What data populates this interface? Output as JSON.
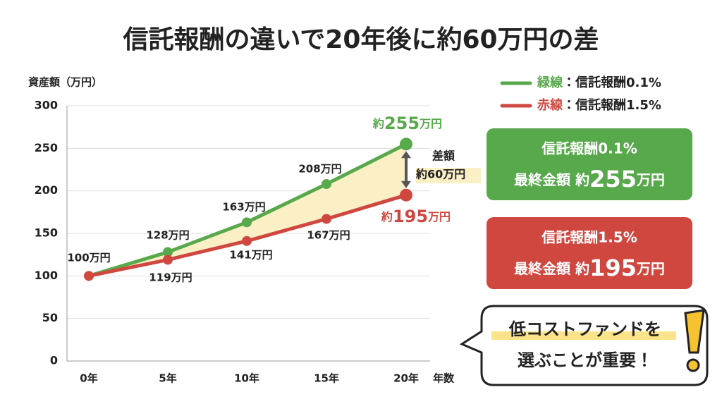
{
  "chart_data": {
    "type": "line",
    "title": "信託報酬の違いで20年後に約60万円の差",
    "y_label": "資産額（万円）",
    "x_label": "年数",
    "categories": [
      "0年",
      "5年",
      "10年",
      "15年",
      "20年"
    ],
    "ylim": [
      0,
      300
    ],
    "yticks": [
      0,
      50,
      100,
      150,
      200,
      250,
      300
    ],
    "grid": true,
    "series": [
      {
        "name": "緑線",
        "legend_label": "：信託報酬0.1%",
        "color": "#58a84c",
        "values": [
          100,
          128,
          163,
          208,
          255
        ],
        "value_labels": [
          "100万円",
          "128万円",
          "163万円",
          "208万円",
          "約255万円"
        ]
      },
      {
        "name": "赤線",
        "legend_label": "：信託報酬1.5%",
        "color": "#d0473f",
        "values": [
          100,
          119,
          141,
          167,
          195
        ],
        "value_labels": [
          null,
          "119万円",
          "141万円",
          "167万円",
          "約195万円"
        ]
      }
    ],
    "fill_between_color": "#fbefc6",
    "difference_annotation": [
      "差額",
      "約60万円"
    ],
    "summary_boxes": [
      {
        "title": "信託報酬0.1%",
        "label": "最終金額 約255万円",
        "color": "#58a84c"
      },
      {
        "title": "信託報酬1.5%",
        "label": "最終金額 約195万円",
        "color": "#d0473f"
      }
    ],
    "callout": [
      "低コストファンドを",
      "選ぶことが重要！"
    ]
  }
}
